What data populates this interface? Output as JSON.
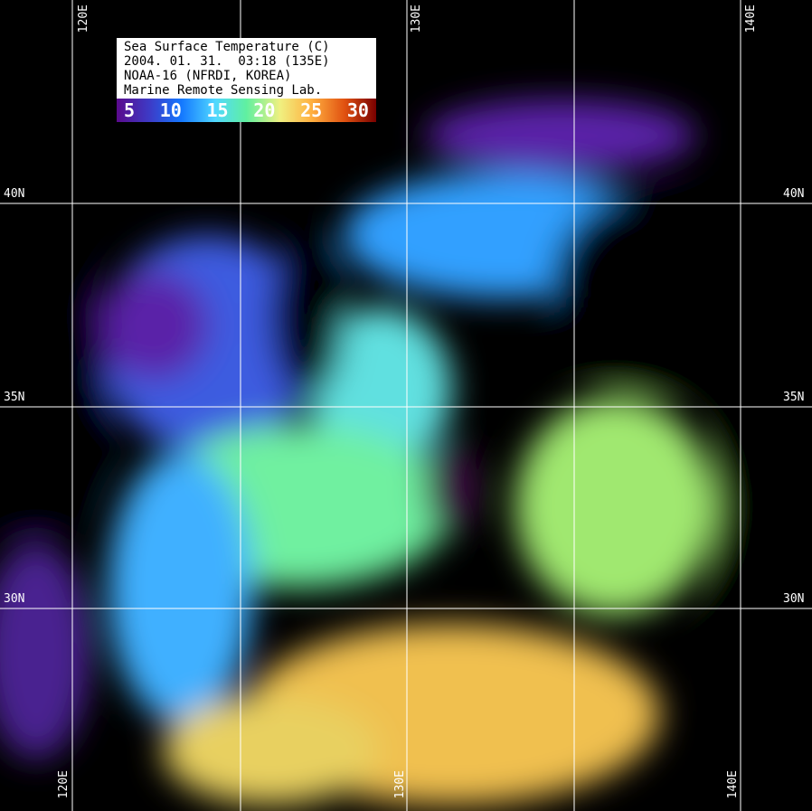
{
  "legend": {
    "title": "Sea Surface Temperature (C)",
    "datetime": "2004. 01. 31.  03:18 (135E)",
    "satellite": "NOAA-16 (NFRDI, KOREA)",
    "lab": "Marine Remote Sensing Lab.",
    "scale_ticks": [
      "5",
      "10",
      "15",
      "20",
      "25",
      "30"
    ],
    "scale_colors": [
      "#5a0a8c",
      "#3c3cc8",
      "#1478ff",
      "#50d8ff",
      "#60f0a0",
      "#f0f080",
      "#ffb040",
      "#e05010",
      "#780000"
    ]
  },
  "grid": {
    "longitudes": [
      "120E",
      "130E",
      "140E"
    ],
    "latitudes": [
      "40N",
      "35N",
      "30N"
    ]
  }
}
